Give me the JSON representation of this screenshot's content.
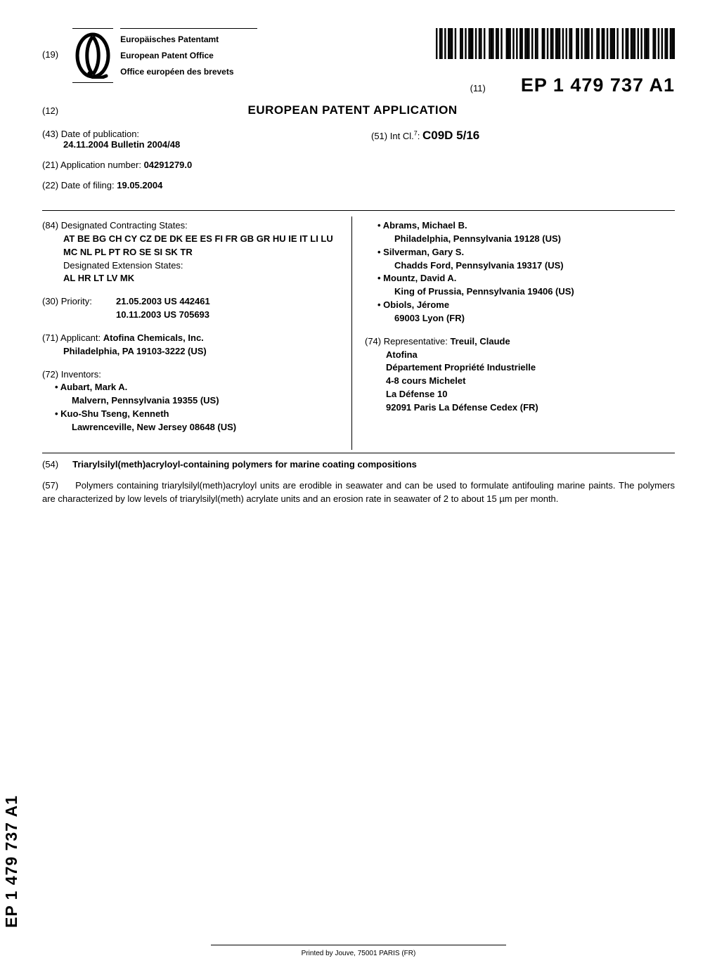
{
  "header": {
    "n19": "(19)",
    "office_de": "Europäisches Patentamt",
    "office_en": "European Patent Office",
    "office_fr": "Office européen des brevets",
    "n11": "(11)",
    "pub_number": "EP 1 479 737 A1"
  },
  "title_row": {
    "n12": "(12)",
    "doc_title": "EUROPEAN PATENT APPLICATION"
  },
  "meta_left": {
    "n43": "(43)",
    "n43_label": "Date of publication:",
    "n43_value": "24.11.2004  Bulletin 2004/48",
    "n21": "(21)",
    "n21_label": "Application number:",
    "n21_value": "04291279.0",
    "n22": "(22)",
    "n22_label": "Date of filing:",
    "n22_value": "19.05.2004"
  },
  "meta_right": {
    "n51": "(51)",
    "n51_label_pre": "Int Cl.",
    "n51_sup": "7",
    "n51_label_post": ":",
    "n51_code": "C09D 5/16"
  },
  "left_col": {
    "n84": "(84)",
    "n84_label": "Designated Contracting States:",
    "n84_states": "AT BE BG CH CY CZ DE DK EE ES FI FR GB GR HU IE IT LI LU MC NL PL PT RO SE SI SK TR",
    "n84_ext_label": "Designated Extension States:",
    "n84_ext_states": "AL HR LT LV MK",
    "n30": "(30)",
    "n30_label": "Priority:",
    "n30_line1": "21.05.2003  US 442461",
    "n30_line2": "10.11.2003  US 705693",
    "n71": "(71)",
    "n71_label": "Applicant:",
    "n71_name": "Atofina Chemicals, Inc.",
    "n71_addr": "Philadelphia, PA 19103-3222 (US)",
    "n72": "(72)",
    "n72_label": "Inventors:",
    "inventors_left": [
      {
        "name": "Aubart, Mark A.",
        "loc": "Malvern, Pennsylvania 19355 (US)"
      },
      {
        "name": "Kuo-Shu Tseng, Kenneth",
        "loc": "Lawrenceville, New Jersey 08648 (US)"
      }
    ]
  },
  "right_col": {
    "inventors_right": [
      {
        "name": "Abrams, Michael B.",
        "loc": "Philadelphia, Pennsylvania 19128 (US)"
      },
      {
        "name": "Silverman, Gary S.",
        "loc": "Chadds Ford, Pennsylvania 19317 (US)"
      },
      {
        "name": "Mountz, David A.",
        "loc": "King of Prussia, Pennsylvania 19406 (US)"
      },
      {
        "name": "Obiols, Jérome",
        "loc": "69003 Lyon (FR)"
      }
    ],
    "n74": "(74)",
    "n74_label": "Representative:",
    "n74_name": "Treuil, Claude",
    "n74_lines": [
      "Atofina",
      "Département Propriété Industrielle",
      "4-8 cours Michelet",
      "La Défense 10",
      "92091 Paris La Défense Cedex (FR)"
    ]
  },
  "abstract": {
    "n54": "(54)",
    "inv_title": "Triarylsilyl(meth)acryloyl-containing polymers for marine coating compositions",
    "n57": "(57)",
    "text": "Polymers containing triarylsilyl(meth)acryloyl units are erodible in seawater and can be used to formulate antifouling marine paints. The polymers are characterized by low levels of triarylsilyl(meth) acrylate units and an erosion rate in seawater of 2 to about 15 µm per month."
  },
  "side_pub": "EP 1 479 737 A1",
  "footer": "Printed by Jouve, 75001 PARIS (FR)",
  "barcode": {
    "bars": [
      1,
      0,
      1,
      1,
      0,
      1,
      0,
      1,
      1,
      1,
      0,
      1,
      0,
      0,
      1,
      1,
      0,
      1,
      0,
      1,
      1,
      1,
      0,
      1,
      0,
      1,
      1,
      0,
      1,
      0,
      0,
      1,
      1,
      1,
      0,
      1,
      1,
      0,
      1,
      0,
      0,
      1,
      1,
      1,
      0,
      1,
      0,
      1,
      0,
      1,
      1,
      0,
      1,
      1,
      1,
      0,
      1,
      0,
      1,
      1,
      0,
      0,
      1,
      1,
      0,
      1,
      0,
      1,
      1,
      0,
      1,
      1,
      1,
      0,
      1,
      0,
      1,
      0,
      1,
      1,
      0,
      0,
      1,
      1,
      0,
      1,
      0,
      1,
      1,
      1,
      0,
      1,
      0,
      0,
      1,
      1,
      0,
      1,
      1,
      0,
      1,
      0,
      1,
      1,
      1,
      0,
      1,
      0,
      0,
      1,
      0,
      1,
      1,
      0,
      1,
      1,
      1,
      0,
      1,
      0,
      1,
      0,
      1,
      1,
      1,
      0,
      0,
      1,
      1,
      0,
      1,
      0,
      1,
      0,
      1,
      1,
      0,
      1,
      1,
      1
    ]
  }
}
